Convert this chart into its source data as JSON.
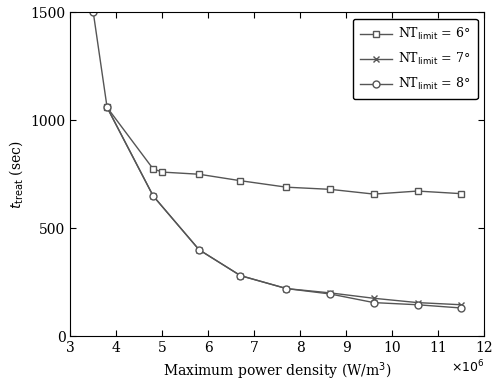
{
  "series": [
    {
      "label_val": "6",
      "marker": "s",
      "x": [
        3.8,
        4.8,
        5.0,
        5.8,
        6.7,
        7.7,
        8.65,
        9.6,
        10.55,
        11.5
      ],
      "y": [
        1060,
        775,
        760,
        750,
        720,
        690,
        680,
        658,
        672,
        660
      ]
    },
    {
      "label_val": "7",
      "marker": "x",
      "x": [
        3.8,
        4.8,
        5.8,
        6.7,
        7.7,
        8.65,
        9.6,
        10.55,
        11.5
      ],
      "y": [
        1060,
        650,
        400,
        280,
        220,
        200,
        175,
        155,
        145
      ]
    },
    {
      "label_val": "8",
      "marker": "o",
      "x": [
        3.5,
        3.8,
        4.8,
        5.8,
        6.7,
        7.7,
        8.65,
        9.6,
        10.55,
        11.5
      ],
      "y": [
        1500,
        1060,
        650,
        400,
        280,
        220,
        195,
        155,
        145,
        130
      ]
    }
  ],
  "color": "#555555",
  "xlim": [
    3.0,
    12.0
  ],
  "ylim": [
    0,
    1500
  ],
  "xlabel": "Maximum power density (W/m$^3$)",
  "ylabel": "$t_{\\rm treal}$ (sec)",
  "xticks": [
    3,
    4,
    5,
    6,
    7,
    8,
    9,
    10,
    11,
    12
  ],
  "yticks": [
    0,
    500,
    1000,
    1500
  ],
  "legend_loc": "upper right",
  "markersize": 5,
  "linewidth": 1.0,
  "tick_fontsize": 10,
  "label_fontsize": 10
}
